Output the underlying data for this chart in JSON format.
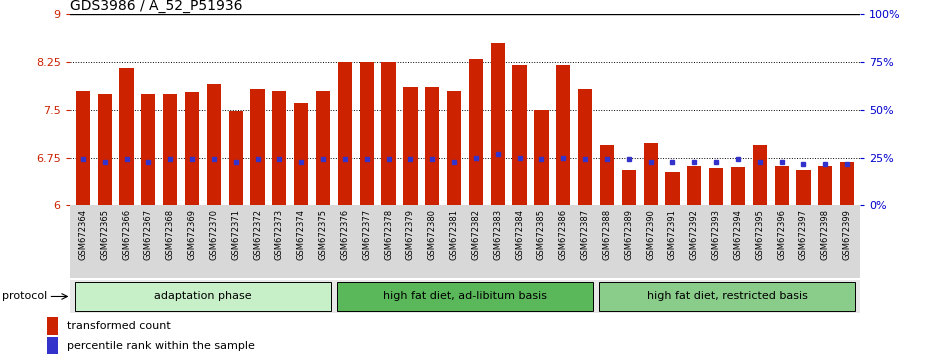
{
  "title": "GDS3986 / A_52_P51936",
  "samples": [
    "GSM672364",
    "GSM672365",
    "GSM672366",
    "GSM672367",
    "GSM672368",
    "GSM672369",
    "GSM672370",
    "GSM672371",
    "GSM672372",
    "GSM672373",
    "GSM672374",
    "GSM672375",
    "GSM672376",
    "GSM672377",
    "GSM672378",
    "GSM672379",
    "GSM672380",
    "GSM672381",
    "GSM672382",
    "GSM672383",
    "GSM672384",
    "GSM672385",
    "GSM672386",
    "GSM672387",
    "GSM672388",
    "GSM672389",
    "GSM672390",
    "GSM672391",
    "GSM672392",
    "GSM672393",
    "GSM672394",
    "GSM672395",
    "GSM672396",
    "GSM672397",
    "GSM672398",
    "GSM672399"
  ],
  "bar_values": [
    7.8,
    7.75,
    8.15,
    7.75,
    7.75,
    7.78,
    7.9,
    7.48,
    7.82,
    7.8,
    7.6,
    7.8,
    8.25,
    8.25,
    8.25,
    7.85,
    7.85,
    7.8,
    8.3,
    8.55,
    8.2,
    7.5,
    8.2,
    7.82,
    6.95,
    6.55,
    6.98,
    6.52,
    6.62,
    6.58,
    6.6,
    6.95,
    6.62,
    6.55,
    6.62,
    6.68
  ],
  "percentile_values": [
    6.72,
    6.68,
    6.73,
    6.68,
    6.73,
    6.73,
    6.73,
    6.68,
    6.73,
    6.73,
    6.68,
    6.73,
    6.73,
    6.73,
    6.73,
    6.73,
    6.73,
    6.68,
    6.75,
    6.8,
    6.75,
    6.73,
    6.75,
    6.73,
    6.73,
    6.73,
    6.68,
    6.68,
    6.68,
    6.68,
    6.73,
    6.68,
    6.68,
    6.65,
    6.65,
    6.65
  ],
  "groups": [
    {
      "label": "adaptation phase",
      "start": 0,
      "end": 12,
      "color": "#c8f0c8"
    },
    {
      "label": "high fat diet, ad-libitum basis",
      "start": 12,
      "end": 24,
      "color": "#5ab85a"
    },
    {
      "label": "high fat diet, restricted basis",
      "start": 24,
      "end": 36,
      "color": "#8acc8a"
    }
  ],
  "ymin": 6.0,
  "ymax": 9.0,
  "yticks_left": [
    6.0,
    6.75,
    7.5,
    8.25,
    9.0
  ],
  "ytick_left_labels": [
    "6",
    "6.75",
    "7.5",
    "8.25",
    "9"
  ],
  "yticks_right_vals": [
    0,
    25,
    50,
    75,
    100
  ],
  "yticks_right_labels": [
    "0%",
    "25%",
    "50%",
    "75%",
    "100%"
  ],
  "hlines": [
    6.75,
    7.5,
    8.25
  ],
  "bar_color": "#cc2200",
  "dot_color": "#3333cc",
  "background_color": "#ffffff",
  "title_fontsize": 10,
  "axis_label_color_left": "#cc2200",
  "axis_label_color_right": "#0000cc",
  "xtick_bg_color": "#d8d8d8",
  "proto_bg_color": "#e8e8e8"
}
